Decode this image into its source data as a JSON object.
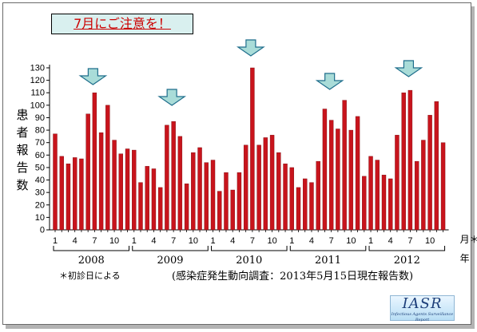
{
  "title": "7月にご注意を！",
  "ylabel_chars": [
    "患",
    "者",
    "報",
    "告",
    "数"
  ],
  "footnote_left": "＊初診日による",
  "footnote_right": "(感染症発生動向調査：2013年5月15日現在報告数)",
  "logo": {
    "word": "IASR",
    "subtitle": "Infectious Agents Surveillance Report"
  },
  "colors": {
    "bar": "#c8141c",
    "arrow_fill": "#a9dcd8",
    "arrow_stroke": "#1f6e8c",
    "title_bg": "#d9f0ef",
    "title_text": "#cc0000"
  },
  "chart_data": {
    "type": "bar",
    "title": "7月にご注意を！",
    "ylabel": "患者報告数",
    "xlabel": "月＊ 年",
    "x_unit_month": "月＊",
    "x_unit_year": "年",
    "ylim": [
      0,
      130
    ],
    "yticks": [
      0,
      10,
      20,
      30,
      40,
      50,
      60,
      70,
      80,
      90,
      100,
      110,
      120,
      130
    ],
    "month_ticks": [
      "1",
      "4",
      "7",
      "10"
    ],
    "years": [
      "2008",
      "2009",
      "2010",
      "2011",
      "2012"
    ],
    "values": [
      77,
      59,
      53,
      58,
      57,
      93,
      110,
      78,
      100,
      72,
      61,
      65,
      64,
      38,
      51,
      49,
      34,
      84,
      87,
      75,
      37,
      62,
      66,
      54,
      56,
      31,
      46,
      32,
      46,
      68,
      130,
      68,
      74,
      76,
      62,
      53,
      50,
      34,
      41,
      38,
      55,
      97,
      88,
      81,
      104,
      80,
      91,
      43,
      59,
      56,
      44,
      41,
      76,
      110,
      112,
      55,
      72,
      92,
      103,
      70
    ],
    "annotations": [
      {
        "type": "arrow-down",
        "index": 6
      },
      {
        "type": "arrow-down",
        "index": 18
      },
      {
        "type": "arrow-down",
        "index": 30
      },
      {
        "type": "arrow-down",
        "index": 42
      },
      {
        "type": "arrow-down",
        "index": 54
      }
    ],
    "grid": false,
    "legend": "none"
  }
}
